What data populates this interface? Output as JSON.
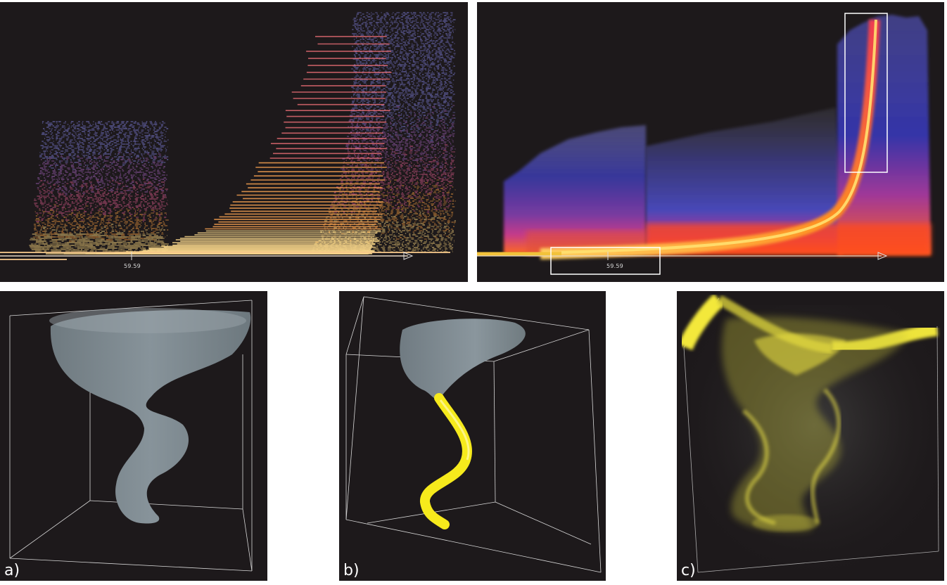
{
  "top_left": {
    "tick_label": "59.59"
  },
  "top_right": {
    "tick_label": "59.59"
  },
  "panel_a": {
    "label": "a)"
  },
  "panel_b": {
    "label": "b)"
  },
  "panel_c": {
    "label": "c)"
  },
  "colors": {
    "panel_bg": "#1d191b",
    "blue": "#3a3aa8",
    "magenta": "#c43a8a",
    "orange": "#f0701c",
    "yellow": "#f7e03a",
    "surface_gray": "#7c878e",
    "bright_yellow": "#f6ea1c"
  }
}
